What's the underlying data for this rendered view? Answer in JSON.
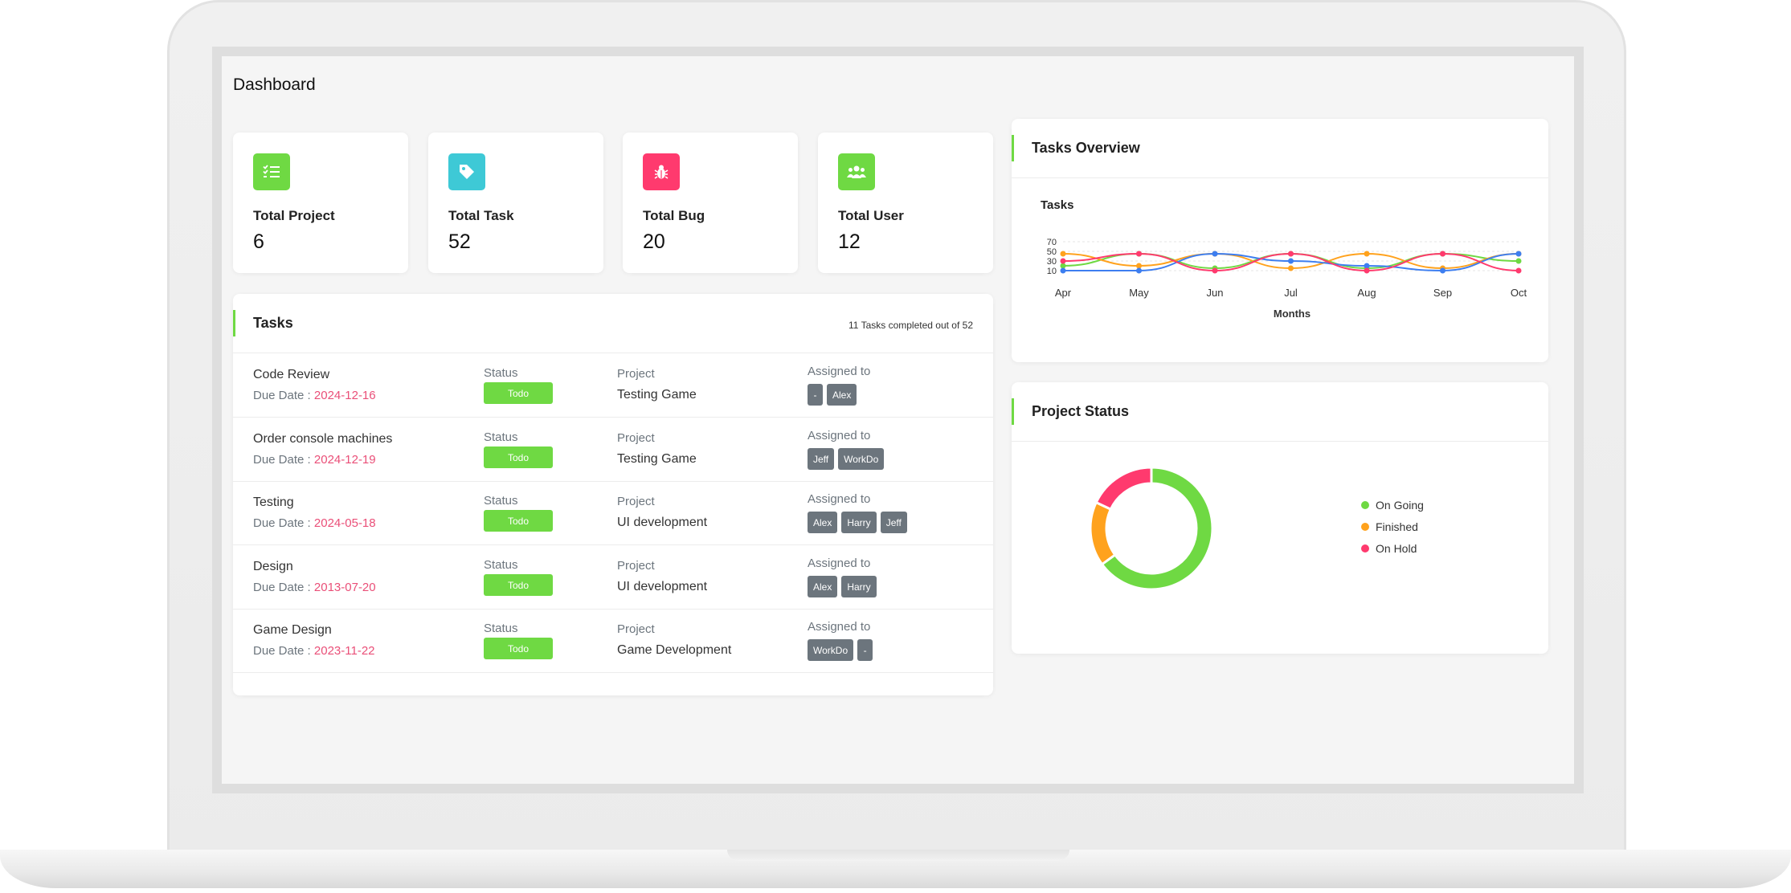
{
  "dashboard": {
    "title": "Dashboard",
    "stats": [
      {
        "label": "Total Project",
        "value": "6",
        "icon": "list-check-icon",
        "color": "#6fd943"
      },
      {
        "label": "Total Task",
        "value": "52",
        "icon": "tag-icon",
        "color": "#3ec9d6"
      },
      {
        "label": "Total Bug",
        "value": "20",
        "icon": "bug-icon",
        "color": "#ff3a6e"
      },
      {
        "label": "Total User",
        "value": "12",
        "icon": "users-icon",
        "color": "#6fd943"
      }
    ]
  },
  "tasks": {
    "title": "Tasks",
    "summary": "11 Tasks completed out of 52",
    "status_label": "Status",
    "project_label": "Project",
    "assigned_label": "Assigned to",
    "due_label": "Due Date :",
    "rows": [
      {
        "name": "Code Review",
        "due": "2024-12-16",
        "status": "Todo",
        "project": "Testing Game",
        "assignees": [
          "-",
          "Alex"
        ]
      },
      {
        "name": "Order console machines",
        "due": "2024-12-19",
        "status": "Todo",
        "project": "Testing Game",
        "assignees": [
          "Jeff",
          "WorkDo"
        ]
      },
      {
        "name": "Testing",
        "due": "2024-05-18",
        "status": "Todo",
        "project": "UI development",
        "assignees": [
          "Alex",
          "Harry",
          "Jeff"
        ]
      },
      {
        "name": "Design",
        "due": "2013-07-20",
        "status": "Todo",
        "project": "UI development",
        "assignees": [
          "Alex",
          "Harry"
        ]
      },
      {
        "name": "Game Design",
        "due": "2023-11-22",
        "status": "Todo",
        "project": "Game Development",
        "assignees": [
          "WorkDo",
          "-"
        ]
      }
    ]
  },
  "tasks_overview": {
    "title": "Tasks Overview"
  },
  "project_status": {
    "title": "Project Status"
  },
  "colors": {
    "accent": "#6fd943",
    "danger": "#ea4f78",
    "ongoing": "#6fd943",
    "finished": "#ffa21d",
    "onhold": "#ff3a6e",
    "line_blue": "#3d7ef0"
  },
  "chart_data": [
    {
      "type": "line",
      "title": "Tasks",
      "xlabel": "Months",
      "ylabel": "",
      "categories": [
        "Apr",
        "May",
        "Jun",
        "Jul",
        "Aug",
        "Sep",
        "Oct"
      ],
      "yticks": [
        10,
        30,
        50,
        70
      ],
      "ylim": [
        0,
        70
      ],
      "grid": true,
      "series": [
        {
          "color": "#6fd943",
          "values": [
            20,
            45,
            15,
            45,
            15,
            45,
            30
          ]
        },
        {
          "color": "#ffa21d",
          "values": [
            45,
            20,
            45,
            15,
            45,
            15,
            45
          ]
        },
        {
          "color": "#3d7ef0",
          "values": [
            10,
            10,
            45,
            30,
            20,
            10,
            45
          ]
        },
        {
          "color": "#ff3a6e",
          "values": [
            30,
            45,
            10,
            45,
            10,
            45,
            10
          ]
        }
      ]
    },
    {
      "type": "pie",
      "title": "",
      "legend": "right",
      "labels": [
        "On Going",
        "Finished",
        "On Hold"
      ],
      "values": [
        65,
        17,
        18
      ],
      "colors": [
        "#6fd943",
        "#ffa21d",
        "#ff3a6e"
      ]
    }
  ]
}
